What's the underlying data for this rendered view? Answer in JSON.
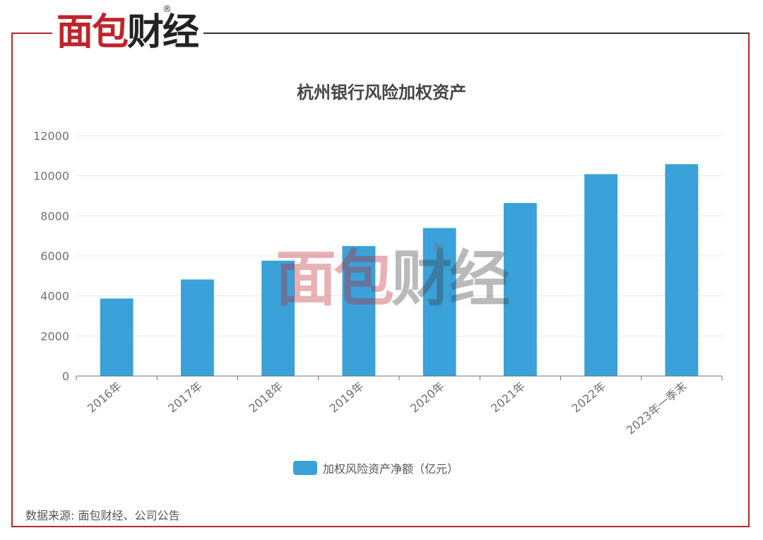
{
  "brand": {
    "logo_part1": "面包",
    "logo_part2": "财经",
    "registered_mark": "®"
  },
  "legend_label": "加权风险资产净额（亿元）",
  "source_text": "数据来源: 面包财经、公司公告",
  "colors": {
    "bar": "#3aa1d9",
    "frame": "#b5262c",
    "grid": "#e3e8f0",
    "axis": "#6e7079"
  },
  "chart_data": {
    "type": "bar",
    "title": "杭州银行风险加权资产",
    "categories": [
      "2016年",
      "2017年",
      "2018年",
      "2019年",
      "2020年",
      "2021年",
      "2022年",
      "2023年一季末"
    ],
    "series": [
      {
        "name": "加权风险资产净额（亿元）",
        "values": [
          3870,
          4820,
          5760,
          6490,
          7390,
          8640,
          10080,
          10580
        ]
      }
    ],
    "ylim": [
      0,
      12000
    ],
    "yticks": [
      "0",
      "2000",
      "4000",
      "6000",
      "8000",
      "10000",
      "12000"
    ],
    "grid": true,
    "legend_position": "bottom"
  }
}
